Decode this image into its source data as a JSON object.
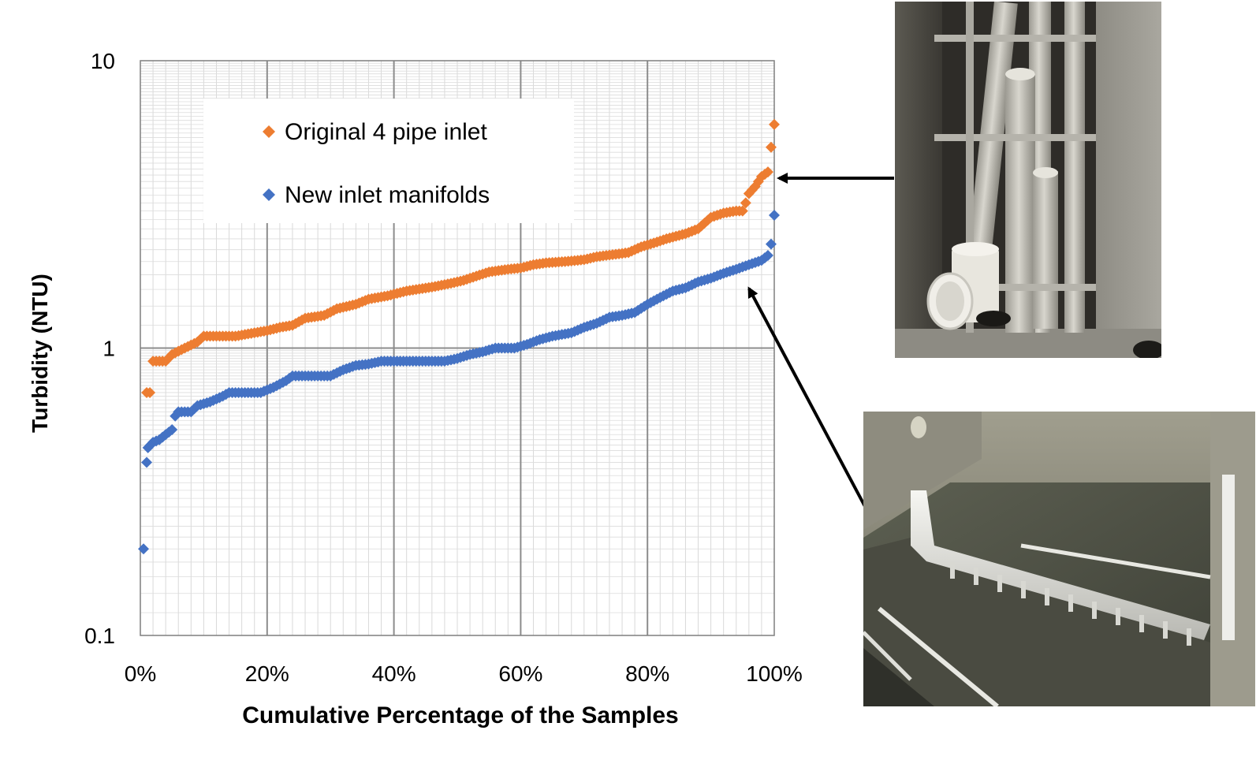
{
  "chart_data": {
    "type": "scatter",
    "title": "",
    "xlabel": "Cumulative Percentage of the Samples",
    "ylabel": "Turbidity (NTU)",
    "xlim": [
      0,
      100
    ],
    "ylim": [
      0.1,
      10
    ],
    "y_scale": "log",
    "x_ticks": [
      "0%",
      "20%",
      "40%",
      "60%",
      "80%",
      "100%"
    ],
    "y_ticks": [
      "0.1",
      "1",
      "10"
    ],
    "grid": true,
    "legend_position": "top-left",
    "series": [
      {
        "name": "Original 4 pipe inlet",
        "color": "#ED7D31",
        "marker": "diamond",
        "points": [
          [
            1,
            0.7
          ],
          [
            1.5,
            0.7
          ],
          [
            2,
            0.9
          ],
          [
            2.5,
            0.9
          ],
          [
            3,
            0.9
          ],
          [
            4,
            0.9
          ],
          [
            5,
            0.95
          ],
          [
            7,
            1.0
          ],
          [
            9,
            1.05
          ],
          [
            10,
            1.1
          ],
          [
            12,
            1.1
          ],
          [
            15,
            1.1
          ],
          [
            17,
            1.12
          ],
          [
            20,
            1.15
          ],
          [
            22,
            1.18
          ],
          [
            24,
            1.2
          ],
          [
            26,
            1.27
          ],
          [
            29,
            1.3
          ],
          [
            31,
            1.37
          ],
          [
            34,
            1.42
          ],
          [
            36,
            1.48
          ],
          [
            39,
            1.52
          ],
          [
            42,
            1.58
          ],
          [
            46,
            1.63
          ],
          [
            49,
            1.68
          ],
          [
            51,
            1.72
          ],
          [
            53,
            1.78
          ],
          [
            55,
            1.84
          ],
          [
            58,
            1.88
          ],
          [
            60,
            1.9
          ],
          [
            62,
            1.95
          ],
          [
            64,
            1.98
          ],
          [
            67,
            2.0
          ],
          [
            70,
            2.03
          ],
          [
            72,
            2.08
          ],
          [
            75,
            2.12
          ],
          [
            77,
            2.15
          ],
          [
            79,
            2.25
          ],
          [
            81,
            2.32
          ],
          [
            83,
            2.4
          ],
          [
            86,
            2.5
          ],
          [
            88,
            2.6
          ],
          [
            90,
            2.85
          ],
          [
            92,
            2.95
          ],
          [
            94,
            3.0
          ],
          [
            95,
            3.0
          ],
          [
            95.5,
            3.2
          ],
          [
            96,
            3.45
          ],
          [
            97,
            3.65
          ],
          [
            98,
            3.95
          ],
          [
            99,
            4.1
          ],
          [
            99.5,
            5.0
          ],
          [
            100,
            6.0
          ]
        ]
      },
      {
        "name": "New inlet manifolds",
        "color": "#4472C4",
        "marker": "diamond",
        "points": [
          [
            0.5,
            0.2
          ],
          [
            1,
            0.4
          ],
          [
            1.2,
            0.45
          ],
          [
            2,
            0.47
          ],
          [
            3,
            0.48
          ],
          [
            4,
            0.5
          ],
          [
            5,
            0.52
          ],
          [
            5.5,
            0.58
          ],
          [
            6,
            0.6
          ],
          [
            8,
            0.6
          ],
          [
            9,
            0.63
          ],
          [
            11,
            0.65
          ],
          [
            13,
            0.68
          ],
          [
            14,
            0.7
          ],
          [
            17,
            0.7
          ],
          [
            19,
            0.7
          ],
          [
            21,
            0.73
          ],
          [
            23,
            0.77
          ],
          [
            24,
            0.8
          ],
          [
            27,
            0.8
          ],
          [
            30,
            0.8
          ],
          [
            32,
            0.84
          ],
          [
            34,
            0.87
          ],
          [
            36,
            0.88
          ],
          [
            38,
            0.9
          ],
          [
            42,
            0.9
          ],
          [
            46,
            0.9
          ],
          [
            48,
            0.9
          ],
          [
            50,
            0.92
          ],
          [
            52,
            0.95
          ],
          [
            54,
            0.97
          ],
          [
            56,
            1.0
          ],
          [
            59,
            1.0
          ],
          [
            61,
            1.03
          ],
          [
            63,
            1.07
          ],
          [
            65,
            1.1
          ],
          [
            68,
            1.13
          ],
          [
            70,
            1.18
          ],
          [
            72,
            1.22
          ],
          [
            74,
            1.28
          ],
          [
            76,
            1.3
          ],
          [
            78,
            1.33
          ],
          [
            80,
            1.42
          ],
          [
            82,
            1.5
          ],
          [
            84,
            1.58
          ],
          [
            86,
            1.62
          ],
          [
            88,
            1.7
          ],
          [
            90,
            1.75
          ],
          [
            92,
            1.82
          ],
          [
            94,
            1.88
          ],
          [
            96,
            1.95
          ],
          [
            98,
            2.02
          ],
          [
            99,
            2.1
          ],
          [
            99.5,
            2.3
          ],
          [
            100,
            2.9
          ]
        ]
      }
    ]
  },
  "photos": {
    "top": "original 4-pipe inlet photo",
    "bottom": "new inlet manifold photo"
  }
}
